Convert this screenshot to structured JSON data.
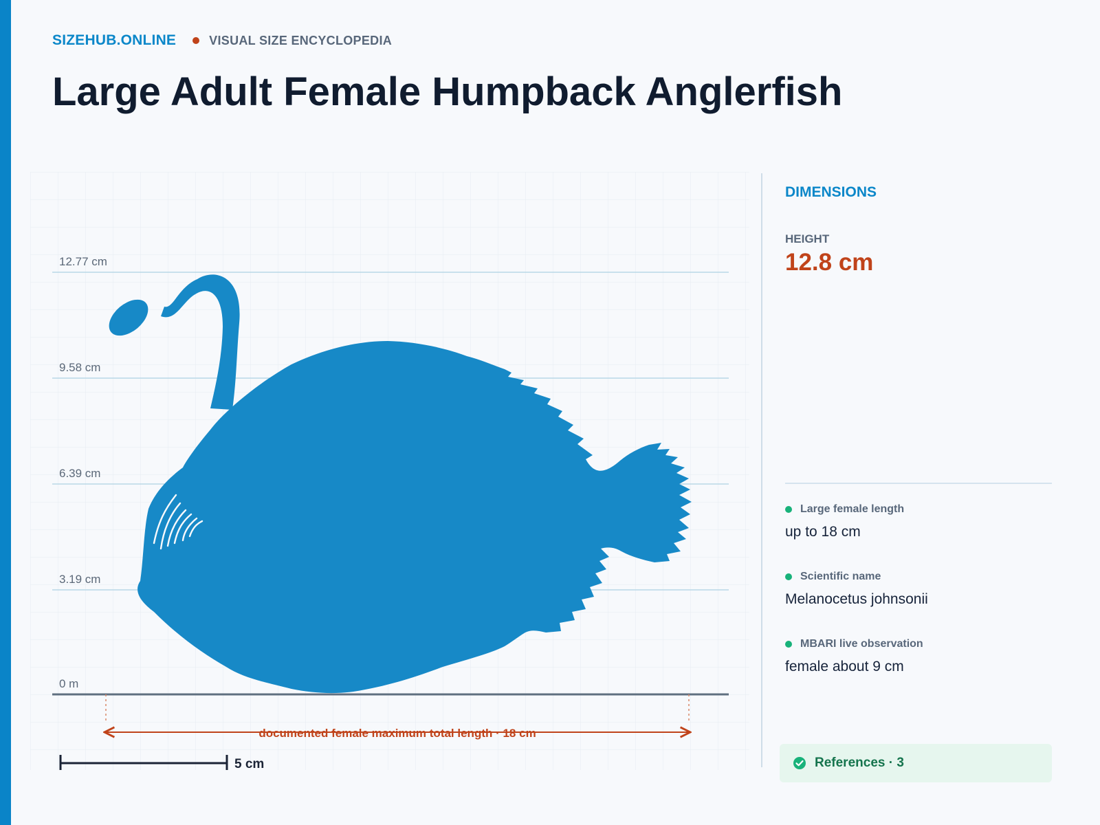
{
  "brand": {
    "name": "SIZEHUB.ONLINE",
    "tagline": "VISUAL SIZE ENCYCLOPEDIA"
  },
  "title": "Large Adult Female Humpback Anglerfish",
  "figure": {
    "height_ticks": [
      "12.77 cm",
      "9.58 cm",
      "6.39 cm",
      "3.19 cm",
      "0 m"
    ],
    "length_annotation": "documented female maximum total length · 18 cm",
    "scale_bar_label": "5 cm"
  },
  "panel": {
    "title": "DIMENSIONS",
    "height_label": "HEIGHT",
    "height_value": "12.8 cm",
    "facts": [
      {
        "label": "Large female length",
        "value": "up to 18 cm"
      },
      {
        "label": "Scientific name",
        "value": "Melanocetus johnsonii"
      },
      {
        "label": "MBARI live observation",
        "value": "female about 9 cm"
      }
    ],
    "references": "References · 3"
  },
  "colors": {
    "brand": "#0b87c9",
    "accent": "#c0431a",
    "fish": "#1789c7",
    "title": "#101c2f",
    "references_bg": "#e6f6ee",
    "references_text": "#15744d",
    "ok_green": "#18b27a"
  },
  "icons": {
    "references": "check-circle-icon",
    "fact_bullet": "dot-icon"
  }
}
